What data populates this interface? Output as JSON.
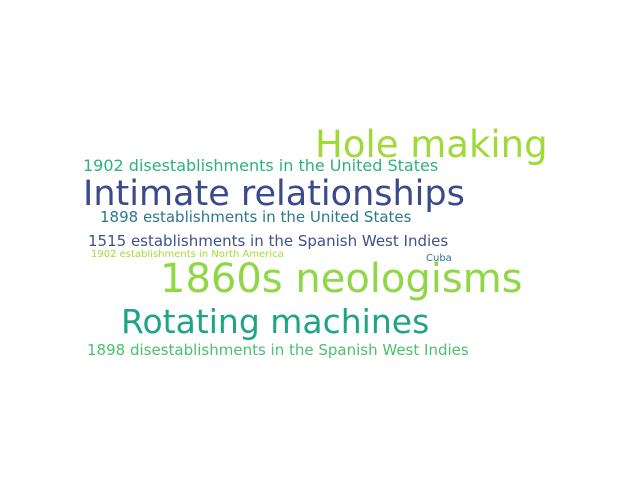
{
  "word_cloud": {
    "words": [
      {
        "id": "hole-making",
        "text": "Hole making",
        "color": "#a0da39"
      },
      {
        "id": "1902-disest-us",
        "text": "1902 disestablishments in the United States",
        "color": "#2db27d"
      },
      {
        "id": "intimate",
        "text": "Intimate relationships",
        "color": "#3b4a8a"
      },
      {
        "id": "1898-est-us",
        "text": "1898 establishments in the United States",
        "color": "#2a788e"
      },
      {
        "id": "1515",
        "text": "1515 establishments in the Spanish West Indies",
        "color": "#3b528b"
      },
      {
        "id": "1902-disest-na",
        "text": "1902 establishments in North America",
        "color": "#a5db36"
      },
      {
        "id": "cuba",
        "text": "Cuba",
        "color": "#2c728e"
      },
      {
        "id": "1860s",
        "text": "1860s neologisms",
        "color": "#8fd744"
      },
      {
        "id": "rotating",
        "text": "Rotating machines",
        "color": "#20a486"
      },
      {
        "id": "1898-disest-swi",
        "text": "1898 disestablishments in the Spanish West Indies",
        "color": "#4ac16d"
      }
    ]
  }
}
